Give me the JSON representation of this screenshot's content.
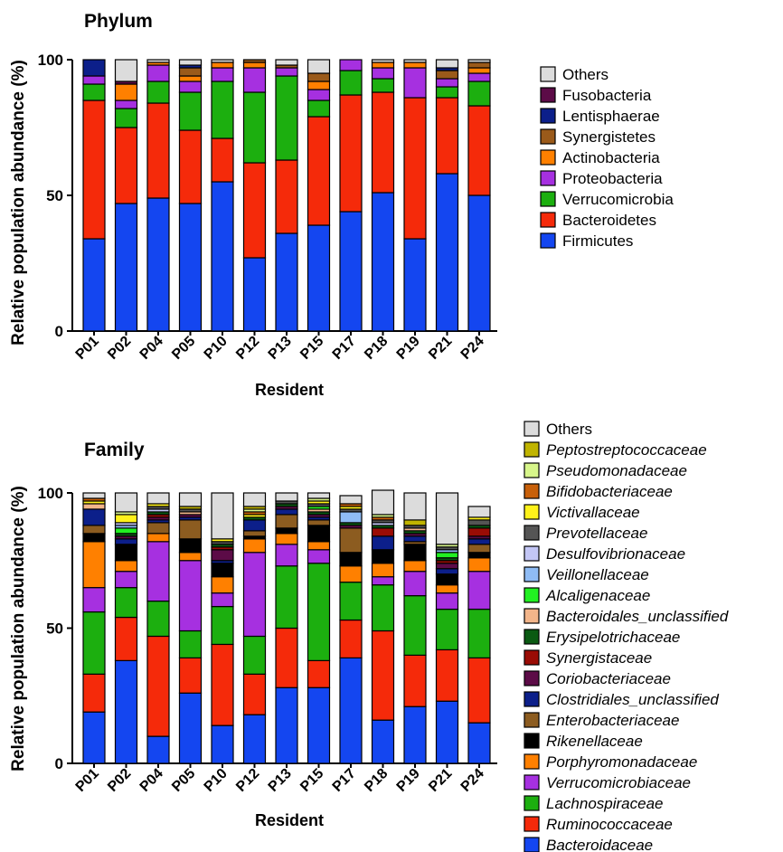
{
  "chart_data": [
    {
      "type": "bar",
      "stacked": true,
      "title": "Phylum",
      "xlabel": "Resident",
      "ylabel": "Relative population abundance (%)",
      "ylim": [
        0,
        100
      ],
      "yticks": [
        0,
        50,
        100
      ],
      "legend_position": "right",
      "categories": [
        "P01",
        "P02",
        "P04",
        "P05",
        "P10",
        "P12",
        "P13",
        "P15",
        "P17",
        "P18",
        "P19",
        "P21",
        "P24"
      ],
      "series": [
        {
          "name": "Firmicutes",
          "color": "#1446f0",
          "italic": false,
          "values": [
            34,
            47,
            49,
            47,
            55,
            27,
            36,
            39,
            44,
            51,
            34,
            58,
            50
          ]
        },
        {
          "name": "Bacteroidetes",
          "color": "#f52a0a",
          "italic": false,
          "values": [
            51,
            28,
            35,
            27,
            16,
            35,
            27,
            40,
            43,
            37,
            52,
            28,
            33
          ]
        },
        {
          "name": "Verrucomicrobia",
          "color": "#1caf0f",
          "italic": false,
          "values": [
            6,
            7,
            8,
            14,
            21,
            26,
            31,
            6,
            9,
            5,
            0,
            4,
            9
          ]
        },
        {
          "name": "Proteobacteria",
          "color": "#a630e0",
          "italic": false,
          "values": [
            3,
            3,
            6,
            4,
            5,
            9,
            3,
            4,
            4,
            4,
            11,
            3,
            3
          ]
        },
        {
          "name": "Actinobacteria",
          "color": "#ff8000",
          "italic": false,
          "values": [
            0,
            6,
            1,
            2,
            2,
            2,
            0,
            3,
            0,
            2,
            2,
            0,
            2
          ]
        },
        {
          "name": "Synergistetes",
          "color": "#9a5a1a",
          "italic": false,
          "values": [
            0,
            0,
            0,
            3,
            0,
            1,
            1,
            3,
            0,
            0,
            0,
            3,
            2
          ]
        },
        {
          "name": "Lentisphaerae",
          "color": "#0c1f8a",
          "italic": false,
          "values": [
            6,
            0,
            0,
            1,
            0,
            0,
            0,
            0,
            0,
            0,
            0,
            1,
            0
          ]
        },
        {
          "name": "Fusobacteria",
          "color": "#5c0b47",
          "italic": false,
          "values": [
            0,
            1,
            0,
            0,
            0,
            0,
            0,
            0,
            0,
            0,
            0,
            0,
            0
          ]
        },
        {
          "name": "Others",
          "color": "#dcdcdc",
          "italic": false,
          "values": [
            0,
            8,
            1,
            2,
            1,
            0,
            2,
            5,
            0,
            1,
            1,
            3,
            1
          ]
        }
      ]
    },
    {
      "type": "bar",
      "stacked": true,
      "title": "Family",
      "xlabel": "Resident",
      "ylabel": "Relative population abundance (%)",
      "ylim": [
        0,
        100
      ],
      "yticks": [
        0,
        50,
        100
      ],
      "legend_position": "right",
      "categories": [
        "P01",
        "P02",
        "P04",
        "P05",
        "P10",
        "P12",
        "P13",
        "P15",
        "P17",
        "P18",
        "P19",
        "P21",
        "P24"
      ],
      "series": [
        {
          "name": "Bacteroidaceae",
          "color": "#1446f0",
          "italic": true,
          "values": [
            19,
            38,
            10,
            26,
            14,
            18,
            28,
            28,
            39,
            16,
            21,
            23,
            15
          ]
        },
        {
          "name": "Ruminococcaceae",
          "color": "#f52a0a",
          "italic": true,
          "values": [
            14,
            16,
            37,
            13,
            30,
            15,
            22,
            10,
            14,
            33,
            19,
            19,
            24
          ]
        },
        {
          "name": "Lachnospiraceae",
          "color": "#1caf0f",
          "italic": true,
          "values": [
            23,
            11,
            13,
            10,
            14,
            14,
            23,
            36,
            14,
            17,
            22,
            15,
            18
          ]
        },
        {
          "name": "Verrucomicrobiaceae",
          "color": "#a630e0",
          "italic": true,
          "values": [
            9,
            6,
            22,
            26,
            5,
            31,
            8,
            5,
            0,
            3,
            9,
            6,
            14
          ]
        },
        {
          "name": "Porphyromonadaceae",
          "color": "#ff8000",
          "italic": true,
          "values": [
            17,
            4,
            3,
            3,
            6,
            5,
            4,
            3,
            6,
            5,
            4,
            3,
            5
          ]
        },
        {
          "name": "Rikenellaceae",
          "color": "#000000",
          "italic": true,
          "values": [
            3,
            6,
            0,
            5,
            5,
            1,
            2,
            6,
            5,
            5,
            6,
            4,
            2
          ]
        },
        {
          "name": "Enterobacteriaceae",
          "color": "#8c5c20",
          "italic": true,
          "values": [
            3,
            0,
            4,
            7,
            0,
            2,
            5,
            2,
            9,
            0,
            1,
            0,
            3
          ]
        },
        {
          "name": "Clostridiales_unclassified",
          "color": "#0c1f8a",
          "italic": true,
          "values": [
            6,
            2,
            1,
            1,
            1,
            4,
            2,
            1,
            0,
            5,
            2,
            2,
            2
          ]
        },
        {
          "name": "Coriobacteriaceae",
          "color": "#5c0b47",
          "italic": true,
          "values": [
            0,
            1,
            1,
            1,
            4,
            0,
            1,
            1,
            1,
            0,
            1,
            2,
            1
          ]
        },
        {
          "name": "Synergistaceae",
          "color": "#9a0c05",
          "italic": true,
          "values": [
            0,
            0,
            1,
            0,
            1,
            0,
            0,
            0,
            0,
            3,
            0,
            1,
            3
          ]
        },
        {
          "name": "Erysipelotrichaceae",
          "color": "#0a5a12",
          "italic": true,
          "values": [
            0,
            1,
            1,
            0,
            1,
            1,
            1,
            1,
            1,
            1,
            1,
            1,
            1
          ]
        },
        {
          "name": "Bacteroidales_unclassified",
          "color": "#f2b58a",
          "italic": true,
          "values": [
            2,
            0,
            0,
            1,
            0,
            0,
            0,
            1,
            0,
            0,
            1,
            0,
            0
          ]
        },
        {
          "name": "Alcaligenaceae",
          "color": "#22f022",
          "italic": true,
          "values": [
            0,
            2,
            0,
            0,
            0,
            0,
            0,
            1,
            0,
            0,
            0,
            2,
            0
          ]
        },
        {
          "name": "Veillonellaceae",
          "color": "#8fbcf5",
          "italic": true,
          "values": [
            0,
            1,
            0,
            0,
            0,
            0,
            0,
            0,
            4,
            0,
            0,
            1,
            0
          ]
        },
        {
          "name": "Desulfovibrionaceae",
          "color": "#c3c6f5",
          "italic": true,
          "values": [
            0,
            1,
            1,
            0,
            0,
            0,
            0,
            0,
            0,
            1,
            0,
            0,
            0
          ]
        },
        {
          "name": "Prevotellaceae",
          "color": "#555555",
          "italic": true,
          "values": [
            0,
            0,
            1,
            1,
            1,
            0,
            1,
            1,
            1,
            1,
            1,
            1,
            2
          ]
        },
        {
          "name": "Victivallaceae",
          "color": "#fff21a",
          "italic": true,
          "values": [
            1,
            3,
            1,
            0,
            1,
            1,
            0,
            1,
            1,
            0,
            0,
            0,
            1
          ]
        },
        {
          "name": "Bifidobacteriaceae",
          "color": "#c8600a",
          "italic": true,
          "values": [
            1,
            0,
            0,
            0,
            0,
            1,
            0,
            0,
            1,
            1,
            0,
            0,
            0
          ]
        },
        {
          "name": "Pseudomonadaceae",
          "color": "#d7f58a",
          "italic": true,
          "values": [
            0,
            1,
            0,
            0,
            0,
            1,
            0,
            1,
            0,
            1,
            0,
            1,
            0
          ]
        },
        {
          "name": "Peptostreptococcaceae",
          "color": "#c0b400",
          "italic": true,
          "values": [
            0,
            0,
            0,
            1,
            0,
            1,
            0,
            0,
            0,
            0,
            2,
            0,
            0
          ]
        },
        {
          "name": "Others",
          "color": "#dcdcdc",
          "italic": false,
          "values": [
            2,
            7,
            4,
            5,
            17,
            5,
            3,
            2,
            3,
            9,
            10,
            19,
            4
          ]
        }
      ]
    }
  ]
}
